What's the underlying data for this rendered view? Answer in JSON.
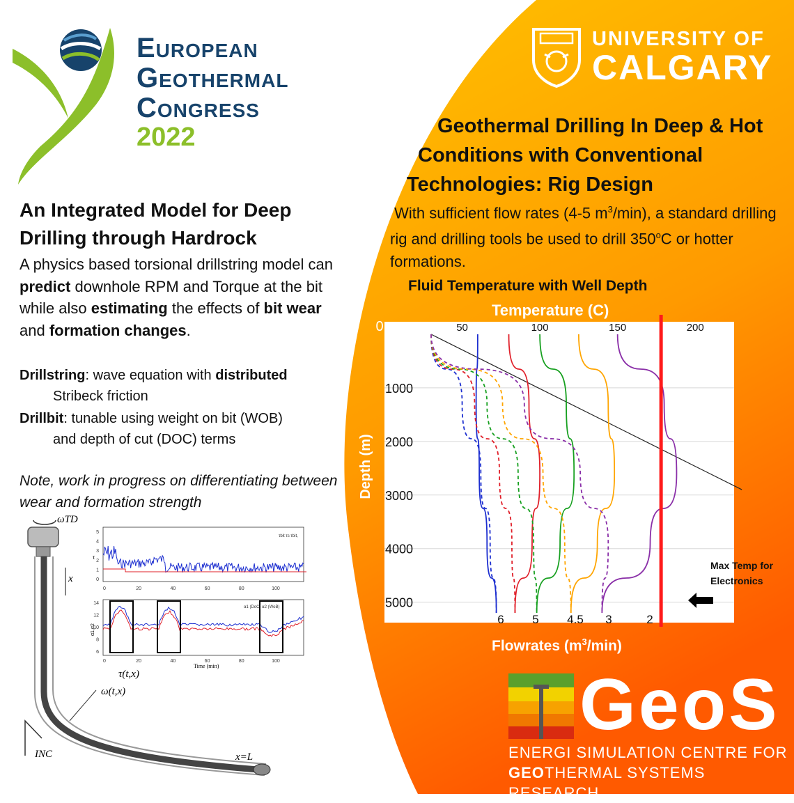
{
  "colors": {
    "orange_light": "#ffc400",
    "orange_dark": "#ff6a00",
    "egc_blue": "#17436b",
    "egc_green": "#8cbf2a"
  },
  "egc": {
    "line1": "European",
    "line2": "Geothermal",
    "line3": "Congress",
    "year": "2022"
  },
  "ucalgary": {
    "line1": "UNIVERSITY OF",
    "line2": "CALGARY"
  },
  "left": {
    "title": "An Integrated Model for Deep Drilling through Hardrock",
    "desc": [
      {
        "t": "A physics based torsional drillstring model can ",
        "b": false
      },
      {
        "t": "predict",
        "b": true
      },
      {
        "t": " downhole RPM and Torque at the bit while also ",
        "b": false
      },
      {
        "t": "estimating",
        "b": true
      },
      {
        "t": " the effects of ",
        "b": false
      },
      {
        "t": "bit wear",
        "b": true
      },
      {
        "t": " and ",
        "b": false
      },
      {
        "t": "formation changes",
        "b": true
      },
      {
        "t": ".",
        "b": false
      }
    ],
    "drillstring_label": "Drillstring",
    "drillstring_text_a": ": wave equation with ",
    "drillstring_text_b": "distributed",
    "drillstring_text_c": "Stribeck friction",
    "drillbit_label": "Drillbit",
    "drillbit_text_a": ": tunable using weight on bit (WOB)",
    "drillbit_text_b": "and depth of cut  (DOC) terms",
    "note": "Note, work in progress on differentiating between wear and formation strength"
  },
  "right": {
    "title_lines": [
      "Geothermal Drilling In Deep & Hot",
      "Conditions with Conventional",
      "Technologies: Rig Design"
    ],
    "desc_a": "With sufficient flow rates (4-5 m",
    "desc_sup": "3",
    "desc_b": "/min), a standard drilling rig and drilling tools be used to drill 350",
    "desc_sup2": "o",
    "desc_c": "C or hotter formations."
  },
  "diagram": {
    "omega_td": "ωTD",
    "x": "x",
    "tau": "τ(t,x)",
    "omega": "ω(t,x)",
    "inc": "INC",
    "xl": "x=L",
    "plot1_xticks": [
      "0",
      "20",
      "40",
      "60",
      "80",
      "100"
    ],
    "plot1_yticks": [
      "0",
      "1",
      "2",
      "3",
      "4",
      "5"
    ],
    "plot1_legend": "τbit  τs  τbit,",
    "plot2_xticks": [
      "0",
      "20",
      "40",
      "60",
      "80",
      "100"
    ],
    "plot2_yticks": [
      "6",
      "8",
      "10",
      "12",
      "14"
    ],
    "plot2_legend": "α1 (DoC)  α2 (WoB)",
    "plot2_xlabel": "Time (min)",
    "plot2_ylabel": "α1,α2",
    "plot1_ylabel": "τ"
  },
  "chart_data": {
    "type": "line",
    "title": "Fluid Temperature with Well Depth",
    "xlabel": "Temperature (C)",
    "ylabel": "Depth (m)",
    "bottom_label": "Flowrates (m3/min)",
    "xlim": [
      0,
      225
    ],
    "ylim": [
      0,
      5200
    ],
    "x_ticks": [
      "0",
      "50",
      "100",
      "150",
      "200"
    ],
    "y_ticks": [
      "1000",
      "2000",
      "3000",
      "4000",
      "5000"
    ],
    "flowrate_labels": [
      "6",
      "5",
      "4.5",
      "3",
      "2"
    ],
    "annotation": "Max Temp for Electronics",
    "max_temp_c": 178,
    "geothermal_gradient": {
      "x": [
        30,
        230
      ],
      "y": [
        0,
        2900
      ]
    },
    "series": [
      {
        "name": "6",
        "color": "#1d2fd0",
        "solid": {
          "x": [
            60,
            59,
            61,
            66,
            72
          ],
          "y": [
            0,
            1300,
            2600,
            3900,
            5200
          ]
        },
        "dashed": {
          "x": [
            30,
            50,
            62,
            68,
            72
          ],
          "y": [
            0,
            1300,
            2600,
            3900,
            5200
          ]
        }
      },
      {
        "name": "5",
        "color": "#e0202a",
        "solid": {
          "x": [
            80,
            93,
            100,
            95,
            84
          ],
          "y": [
            0,
            1300,
            2600,
            3900,
            5200
          ]
        },
        "dashed": {
          "x": [
            30,
            58,
            74,
            82,
            84
          ],
          "y": [
            0,
            1300,
            2600,
            3900,
            5200
          ]
        }
      },
      {
        "name": "4.5",
        "color": "#17a020",
        "solid": {
          "x": [
            100,
            117,
            122,
            113,
            98
          ],
          "y": [
            0,
            1300,
            2600,
            3900,
            5200
          ]
        },
        "dashed": {
          "x": [
            30,
            66,
            86,
            96,
            98
          ],
          "y": [
            0,
            1300,
            2600,
            3900,
            5200
          ]
        }
      },
      {
        "name": "3",
        "color": "#ffa500",
        "solid": {
          "x": [
            125,
            144,
            148,
            137,
            120
          ],
          "y": [
            0,
            1300,
            2600,
            3900,
            5200
          ]
        },
        "dashed": {
          "x": [
            30,
            76,
            102,
            116,
            120
          ],
          "y": [
            0,
            1300,
            2600,
            3900,
            5200
          ]
        }
      },
      {
        "name": "2",
        "color": "#8a2fa8",
        "solid": {
          "x": [
            150,
            180,
            188,
            171,
            140
          ],
          "y": [
            0,
            1300,
            2600,
            3900,
            5200
          ]
        },
        "dashed": {
          "x": [
            30,
            90,
            126,
            144,
            140
          ],
          "y": [
            0,
            1300,
            2600,
            3900,
            5200
          ]
        }
      }
    ]
  },
  "geos": {
    "word": "GeoS",
    "sub1_a": "E",
    "sub1_b": "NERGI ",
    "sub1_c": "S",
    "sub1_d": "IMULATION ",
    "sub1_e": "C",
    "sub1_f": "ENTRE ",
    "sub1_g": "F",
    "sub1_h": "OR",
    "sub2_a": "GEO",
    "sub2_b": "THERMAL ",
    "sub2_c": "S",
    "sub2_d": "YSTEMS ",
    "sub2_e": "R",
    "sub2_f": "ESEARCH"
  }
}
